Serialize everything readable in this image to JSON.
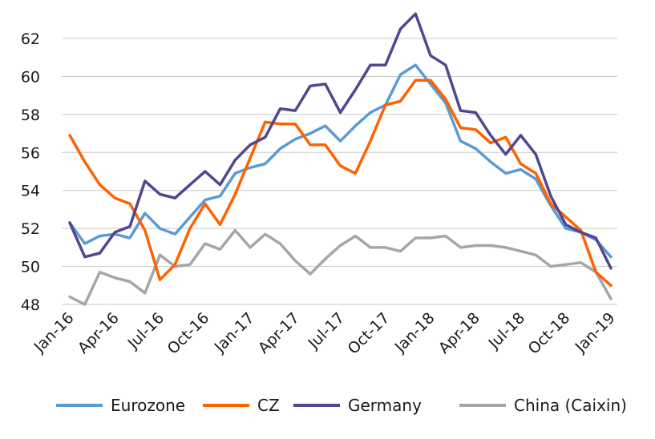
{
  "chart_data": {
    "type": "line",
    "title": "",
    "xlabel": "",
    "ylabel": "",
    "ylim": [
      48,
      63
    ],
    "yticks": [
      48,
      50,
      52,
      54,
      56,
      58,
      60,
      62
    ],
    "grid": "horizontal",
    "legend_position": "bottom",
    "x": [
      "Jan-16",
      "Feb-16",
      "Mar-16",
      "Apr-16",
      "May-16",
      "Jun-16",
      "Jul-16",
      "Aug-16",
      "Sep-16",
      "Oct-16",
      "Nov-16",
      "Dec-16",
      "Jan-17",
      "Feb-17",
      "Mar-17",
      "Apr-17",
      "May-17",
      "Jun-17",
      "Jul-17",
      "Aug-17",
      "Sep-17",
      "Oct-17",
      "Nov-17",
      "Dec-17",
      "Jan-18",
      "Feb-18",
      "Mar-18",
      "Apr-18",
      "May-18",
      "Jun-18",
      "Jul-18",
      "Aug-18",
      "Sep-18",
      "Oct-18",
      "Nov-18",
      "Dec-18",
      "Jan-19"
    ],
    "xtick_labels": [
      "Jan-16",
      "Apr-16",
      "Jul-16",
      "Oct-16",
      "Jan-17",
      "Apr-17",
      "Jul-17",
      "Oct-17",
      "Jan-18",
      "Apr-18",
      "Jul-18",
      "Oct-18",
      "Jan-19"
    ],
    "series": [
      {
        "name": "Eurozone",
        "color": "#5b9bd5",
        "values": [
          52.3,
          51.2,
          51.6,
          51.7,
          51.5,
          52.8,
          52.0,
          51.7,
          52.6,
          53.5,
          53.7,
          54.9,
          55.2,
          55.4,
          56.2,
          56.7,
          57.0,
          57.4,
          56.6,
          57.4,
          58.1,
          58.5,
          60.1,
          60.6,
          59.6,
          58.6,
          56.6,
          56.2,
          55.5,
          54.9,
          55.1,
          54.6,
          53.2,
          52.0,
          51.8,
          51.4,
          50.5
        ]
      },
      {
        "name": "CZ",
        "color": "#ff6200",
        "values": [
          56.9,
          55.5,
          54.3,
          53.6,
          53.3,
          51.9,
          49.3,
          50.1,
          52.0,
          53.3,
          52.2,
          53.8,
          55.7,
          57.6,
          57.5,
          57.5,
          56.4,
          56.4,
          55.3,
          54.9,
          56.6,
          58.5,
          58.7,
          59.8,
          59.8,
          58.8,
          57.3,
          57.2,
          56.5,
          56.8,
          55.4,
          54.9,
          53.3,
          52.6,
          51.9,
          49.7,
          49.0
        ]
      },
      {
        "name": "Germany",
        "color": "#52468f",
        "values": [
          52.3,
          50.5,
          50.7,
          51.8,
          52.1,
          54.5,
          53.8,
          53.6,
          54.3,
          55.0,
          54.3,
          55.6,
          56.4,
          56.8,
          58.3,
          58.2,
          59.5,
          59.6,
          58.1,
          59.3,
          60.6,
          60.6,
          62.5,
          63.3,
          61.1,
          60.6,
          58.2,
          58.1,
          56.9,
          55.9,
          56.9,
          55.9,
          53.7,
          52.2,
          51.8,
          51.5,
          49.9
        ]
      },
      {
        "name": "China (Caixin)",
        "color": "#a6a6a6",
        "values": [
          48.4,
          48.0,
          49.7,
          49.4,
          49.2,
          48.6,
          50.6,
          50.0,
          50.1,
          51.2,
          50.9,
          51.9,
          51.0,
          51.7,
          51.2,
          50.3,
          49.6,
          50.4,
          51.1,
          51.6,
          51.0,
          51.0,
          50.8,
          51.5,
          51.5,
          51.6,
          51.0,
          51.1,
          51.1,
          51.0,
          50.8,
          50.6,
          50.0,
          50.1,
          50.2,
          49.7,
          48.3
        ]
      }
    ]
  }
}
